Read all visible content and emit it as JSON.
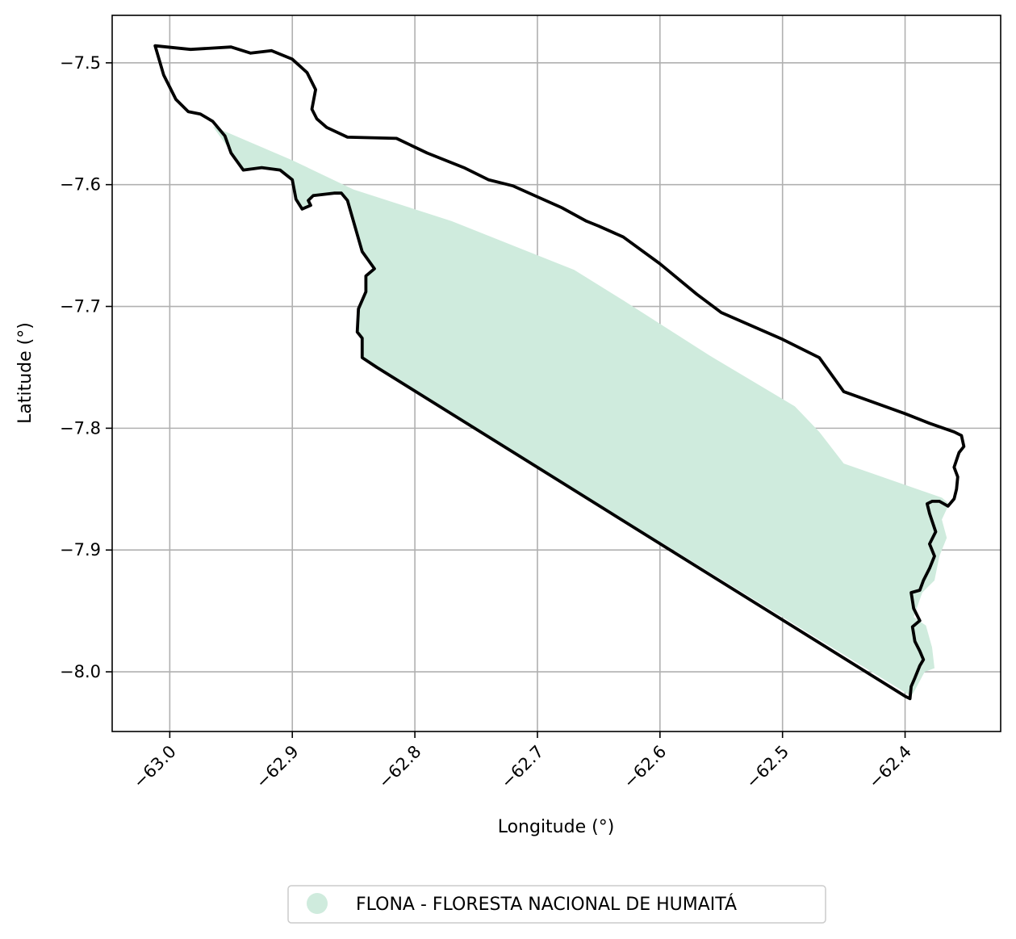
{
  "chart_data": {
    "type": "map",
    "xlabel": "Longitude (°)",
    "ylabel": "Latitude (°)",
    "xlim": [
      -63.047,
      -62.322
    ],
    "ylim": [
      -8.049,
      -7.461
    ],
    "grid": true,
    "legend_placement": "bottom-center",
    "x_ticks": [
      -63.0,
      -62.9,
      -62.8,
      -62.7,
      -62.6,
      -62.5,
      -62.4
    ],
    "x_tick_labels": [
      "−63.0",
      "−62.9",
      "−62.8",
      "−62.7",
      "−62.6",
      "−62.5",
      "−62.4"
    ],
    "y_ticks": [
      -7.5,
      -7.6,
      -7.7,
      -7.8,
      -7.9,
      -8.0
    ],
    "y_tick_labels": [
      "−7.5",
      "−7.6",
      "−7.7",
      "−7.8",
      "−7.9",
      "−8.0"
    ],
    "colors": {
      "fill": "#cfebdd",
      "outline": "#000000",
      "grid": "#b0b0b0"
    },
    "legend": [
      {
        "label": "FLONA - FLORESTA NACIONAL DE HUMAITÁ",
        "color": "#cfebdd"
      }
    ],
    "filled_area": [
      [
        -62.965,
        -7.552
      ],
      [
        -62.9,
        -7.58
      ],
      [
        -62.85,
        -7.604
      ],
      [
        -62.77,
        -7.63
      ],
      [
        -62.67,
        -7.67
      ],
      [
        -62.63,
        -7.695
      ],
      [
        -62.56,
        -7.74
      ],
      [
        -62.49,
        -7.782
      ],
      [
        -62.47,
        -7.803
      ],
      [
        -62.45,
        -7.829
      ],
      [
        -62.37,
        -7.857
      ],
      [
        -62.364,
        -7.862
      ],
      [
        -62.37,
        -7.875
      ],
      [
        -62.366,
        -7.89
      ],
      [
        -62.372,
        -7.905
      ],
      [
        -62.376,
        -7.925
      ],
      [
        -62.386,
        -7.935
      ],
      [
        -62.393,
        -7.955
      ],
      [
        -62.383,
        -7.962
      ],
      [
        -62.378,
        -7.98
      ],
      [
        -62.376,
        -7.997
      ],
      [
        -62.384,
        -8.0
      ],
      [
        -62.392,
        -8.015
      ],
      [
        -62.395,
        -8.02
      ],
      [
        -62.831,
        -7.75
      ],
      [
        -62.843,
        -7.742
      ],
      [
        -62.843,
        -7.726
      ],
      [
        -62.847,
        -7.721
      ],
      [
        -62.846,
        -7.702
      ],
      [
        -62.84,
        -7.688
      ],
      [
        -62.84,
        -7.675
      ],
      [
        -62.833,
        -7.669
      ],
      [
        -62.843,
        -7.655
      ],
      [
        -62.855,
        -7.613
      ],
      [
        -62.86,
        -7.607
      ],
      [
        -62.866,
        -7.607
      ],
      [
        -62.883,
        -7.609
      ],
      [
        -62.887,
        -7.613
      ],
      [
        -62.885,
        -7.617
      ],
      [
        -62.892,
        -7.62
      ],
      [
        -62.897,
        -7.612
      ],
      [
        -62.9,
        -7.596
      ],
      [
        -62.91,
        -7.588
      ],
      [
        -62.925,
        -7.586
      ],
      [
        -62.94,
        -7.588
      ],
      [
        -62.945,
        -7.582
      ],
      [
        -62.95,
        -7.573
      ]
    ],
    "outline": [
      [
        -63.012,
        -7.486
      ],
      [
        -62.983,
        -7.489
      ],
      [
        -62.95,
        -7.487
      ],
      [
        -62.934,
        -7.492
      ],
      [
        -62.917,
        -7.49
      ],
      [
        -62.9,
        -7.497
      ],
      [
        -62.888,
        -7.508
      ],
      [
        -62.881,
        -7.522
      ],
      [
        -62.884,
        -7.538
      ],
      [
        -62.88,
        -7.546
      ],
      [
        -62.872,
        -7.553
      ],
      [
        -62.855,
        -7.561
      ],
      [
        -62.815,
        -7.562
      ],
      [
        -62.79,
        -7.574
      ],
      [
        -62.76,
        -7.586
      ],
      [
        -62.74,
        -7.596
      ],
      [
        -62.72,
        -7.601
      ],
      [
        -62.7,
        -7.61
      ],
      [
        -62.68,
        -7.619
      ],
      [
        -62.66,
        -7.63
      ],
      [
        -62.65,
        -7.634
      ],
      [
        -62.63,
        -7.643
      ],
      [
        -62.6,
        -7.665
      ],
      [
        -62.57,
        -7.69
      ],
      [
        -62.55,
        -7.705
      ],
      [
        -62.5,
        -7.727
      ],
      [
        -62.47,
        -7.742
      ],
      [
        -62.45,
        -7.77
      ],
      [
        -62.4,
        -7.788
      ],
      [
        -62.38,
        -7.796
      ],
      [
        -62.36,
        -7.803
      ],
      [
        -62.354,
        -7.806
      ],
      [
        -62.352,
        -7.815
      ],
      [
        -62.356,
        -7.82
      ],
      [
        -62.36,
        -7.832
      ],
      [
        -62.357,
        -7.84
      ],
      [
        -62.358,
        -7.85
      ],
      [
        -62.36,
        -7.858
      ],
      [
        -62.365,
        -7.864
      ],
      [
        -62.372,
        -7.86
      ],
      [
        -62.378,
        -7.86
      ],
      [
        -62.382,
        -7.862
      ],
      [
        -62.38,
        -7.87
      ],
      [
        -62.375,
        -7.885
      ],
      [
        -62.38,
        -7.895
      ],
      [
        -62.376,
        -7.905
      ],
      [
        -62.38,
        -7.915
      ],
      [
        -62.385,
        -7.925
      ],
      [
        -62.388,
        -7.933
      ],
      [
        -62.395,
        -7.935
      ],
      [
        -62.393,
        -7.948
      ],
      [
        -62.388,
        -7.958
      ],
      [
        -62.394,
        -7.963
      ],
      [
        -62.392,
        -7.975
      ],
      [
        -62.388,
        -7.983
      ],
      [
        -62.385,
        -7.99
      ],
      [
        -62.388,
        -7.995
      ],
      [
        -62.392,
        -8.005
      ],
      [
        -62.395,
        -8.012
      ],
      [
        -62.396,
        -8.022
      ],
      [
        -62.4,
        -8.02
      ],
      [
        -62.831,
        -7.75
      ],
      [
        -62.843,
        -7.742
      ],
      [
        -62.843,
        -7.726
      ],
      [
        -62.847,
        -7.721
      ],
      [
        -62.846,
        -7.702
      ],
      [
        -62.84,
        -7.688
      ],
      [
        -62.84,
        -7.675
      ],
      [
        -62.833,
        -7.669
      ],
      [
        -62.843,
        -7.655
      ],
      [
        -62.855,
        -7.613
      ],
      [
        -62.86,
        -7.607
      ],
      [
        -62.866,
        -7.607
      ],
      [
        -62.883,
        -7.609
      ],
      [
        -62.887,
        -7.613
      ],
      [
        -62.885,
        -7.617
      ],
      [
        -62.892,
        -7.62
      ],
      [
        -62.897,
        -7.612
      ],
      [
        -62.9,
        -7.596
      ],
      [
        -62.91,
        -7.588
      ],
      [
        -62.925,
        -7.586
      ],
      [
        -62.94,
        -7.588
      ],
      [
        -62.95,
        -7.574
      ],
      [
        -62.955,
        -7.56
      ],
      [
        -62.965,
        -7.548
      ],
      [
        -62.975,
        -7.542
      ],
      [
        -62.985,
        -7.54
      ],
      [
        -62.995,
        -7.53
      ],
      [
        -63.005,
        -7.51
      ]
    ]
  }
}
